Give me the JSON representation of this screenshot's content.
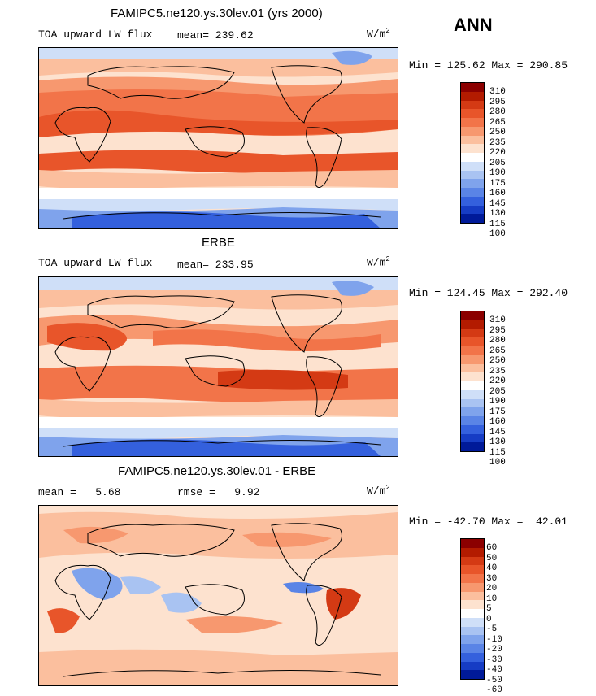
{
  "season": "ANN",
  "units_base": "W/m",
  "units_exp": "2",
  "panels": [
    {
      "title": "FAMIPC5.ne120.ys.30lev.01 (yrs 2000)",
      "left_label": "TOA upward LW flux",
      "mid_label": "mean= 239.62",
      "minmax": "Min = 125.62 Max = 290.85"
    },
    {
      "title": "ERBE",
      "left_label": "TOA upward LW flux",
      "mid_label": "mean= 233.95",
      "minmax": "Min = 124.45 Max = 292.40"
    },
    {
      "title": "FAMIPC5.ne120.ys.30lev.01 - ERBE",
      "left_label": "mean =   5.68",
      "mid_label": "rmse =   9.92",
      "minmax": "Min = -42.70 Max =  42.01"
    }
  ],
  "colorbar_abs": {
    "levels": [
      "310",
      "295",
      "280",
      "265",
      "250",
      "235",
      "220",
      "205",
      "190",
      "175",
      "160",
      "145",
      "130",
      "115",
      "100"
    ],
    "colors": [
      "#8b0000",
      "#b31b00",
      "#d43a14",
      "#e8552a",
      "#f27449",
      "#f7986f",
      "#fbbf9e",
      "#fde2cf",
      "#ffffff",
      "#cfdff8",
      "#a9c3f2",
      "#7fa3ec",
      "#5a84e6",
      "#3460dd",
      "#163cc4",
      "#001a99"
    ]
  },
  "colorbar_diff": {
    "levels": [
      "60",
      "50",
      "40",
      "30",
      "20",
      "10",
      "5",
      "0",
      "-5",
      "-10",
      "-20",
      "-30",
      "-40",
      "-50",
      "-60"
    ],
    "colors": [
      "#8b0000",
      "#b31b00",
      "#d43a14",
      "#e8552a",
      "#f27449",
      "#f7986f",
      "#fbbf9e",
      "#fde2cf",
      "#ffffff",
      "#cfdff8",
      "#a9c3f2",
      "#7fa3ec",
      "#5a84e6",
      "#3460dd",
      "#163cc4",
      "#001a99"
    ]
  }
}
